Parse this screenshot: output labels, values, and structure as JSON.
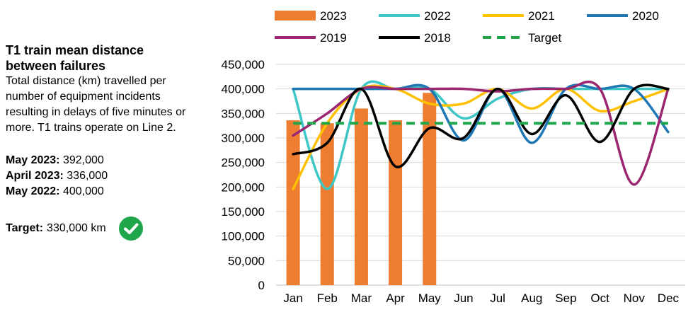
{
  "panel": {
    "title": "T1 train mean distance between failures",
    "description": "Total distance (km) travelled per number of equipment incidents resulting in delays of five minutes or more. T1 trains operate on Line 2.",
    "stats": [
      {
        "label": "May 2023:",
        "value": "392,000"
      },
      {
        "label": "April 2023:",
        "value": "336,000"
      },
      {
        "label": "May 2022:",
        "value": "400,000"
      }
    ],
    "target_label": "Target:",
    "target_value": "330,000 km",
    "target_met_icon": "check-circle-icon"
  },
  "chart_data": {
    "type": "bar",
    "categories": [
      "Jan",
      "Feb",
      "Mar",
      "Apr",
      "May",
      "Jun",
      "Jul",
      "Aug",
      "Sep",
      "Oct",
      "Nov",
      "Dec"
    ],
    "ylim": [
      0,
      450000
    ],
    "yticks": [
      0,
      50000,
      100000,
      150000,
      200000,
      250000,
      300000,
      350000,
      400000,
      450000
    ],
    "ytick_labels": [
      "0",
      "50,000",
      "100,000",
      "150,000",
      "200,000",
      "250,000",
      "300,000",
      "350,000",
      "400,000",
      "450,000"
    ],
    "grid": true,
    "legend_position": "top",
    "bars": {
      "name": "2023",
      "color": "#ED7D31",
      "values": [
        336000,
        330000,
        360000,
        336000,
        392000
      ]
    },
    "series": [
      {
        "name": "2022",
        "color": "#3FC6C6",
        "style": "solid",
        "values": [
          400000,
          196000,
          400000,
          400000,
          400000,
          340000,
          380000,
          400000,
          400000,
          400000,
          400000,
          400000
        ]
      },
      {
        "name": "2021",
        "color": "#FFC000",
        "style": "solid",
        "values": [
          196000,
          330000,
          400000,
          400000,
          370000,
          370000,
          400000,
          360000,
          400000,
          355000,
          375000,
          400000
        ]
      },
      {
        "name": "2020",
        "color": "#1F78B4",
        "style": "solid",
        "values": [
          400000,
          400000,
          400000,
          400000,
          400000,
          295000,
          400000,
          290000,
          400000,
          400000,
          400000,
          312000
        ]
      },
      {
        "name": "2019",
        "color": "#9B2771",
        "style": "solid",
        "values": [
          305000,
          350000,
          400000,
          400000,
          400000,
          400000,
          395000,
          400000,
          400000,
          400000,
          205000,
          400000
        ]
      },
      {
        "name": "2018",
        "color": "#000000",
        "style": "solid",
        "values": [
          267000,
          290000,
          400000,
          242000,
          320000,
          300000,
          400000,
          308000,
          387000,
          292000,
          400000,
          400000
        ]
      },
      {
        "name": "Target",
        "color": "#1FA64A",
        "style": "dashed",
        "values": [
          330000,
          330000,
          330000,
          330000,
          330000,
          330000,
          330000,
          330000,
          330000,
          330000,
          330000,
          330000
        ]
      }
    ],
    "legend_order": [
      "2023",
      "2022",
      "2021",
      "2020",
      "2019",
      "2018",
      "Target"
    ]
  }
}
